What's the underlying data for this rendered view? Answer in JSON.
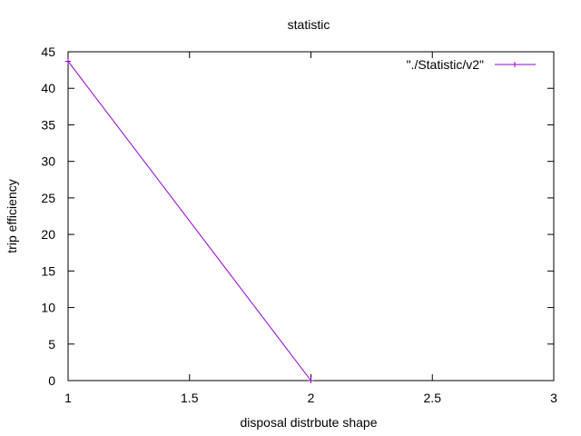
{
  "chart_data": {
    "type": "line",
    "title": "statistic",
    "xlabel": "disposal distrbute shape",
    "ylabel": "trip efficiency",
    "xlim": [
      1,
      3
    ],
    "ylim": [
      0,
      45
    ],
    "x_ticks": [
      1,
      1.5,
      2,
      2.5,
      3
    ],
    "y_ticks": [
      0,
      5,
      10,
      15,
      20,
      25,
      30,
      35,
      40,
      45
    ],
    "grid": false,
    "legend_position": "top-right",
    "series": [
      {
        "name": "\"./Statistic/v2\"",
        "color": "#9400d3",
        "marker": "plus",
        "x": [
          1,
          2
        ],
        "y": [
          43.7,
          0
        ]
      }
    ]
  }
}
